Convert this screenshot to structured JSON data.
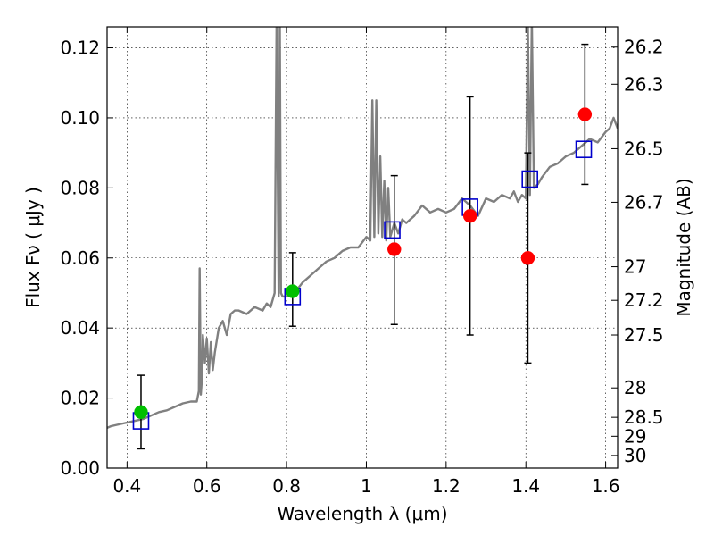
{
  "chart_data": {
    "type": "scatter",
    "xlabel": "Wavelength  λ (μm)",
    "ylabel": "Flux  Fν  ( μJy )",
    "ylabel_right": "Magnitude (AB)",
    "xlim": [
      0.35,
      1.63
    ],
    "ylim": [
      0.0,
      0.126
    ],
    "x_ticks": [
      0.4,
      0.6,
      0.8,
      1.0,
      1.2,
      1.4,
      1.6
    ],
    "x_tick_labels": [
      "0.4",
      "0.6",
      "0.8",
      "1",
      "1.2",
      "1.4",
      "1.6"
    ],
    "y_ticks": [
      0.0,
      0.02,
      0.04,
      0.06,
      0.08,
      0.1,
      0.12
    ],
    "y_tick_labels": [
      "0.00",
      "0.02",
      "0.04",
      "0.06",
      "0.08",
      "0.10",
      "0.12"
    ],
    "right_ticks": [
      {
        "flux": 0.1202,
        "label": "26.2"
      },
      {
        "flux": 0.1096,
        "label": "26.3"
      },
      {
        "flux": 0.0912,
        "label": "26.5"
      },
      {
        "flux": 0.0759,
        "label": "26.7"
      },
      {
        "flux": 0.0575,
        "label": "27"
      },
      {
        "flux": 0.0479,
        "label": "27.2"
      },
      {
        "flux": 0.038,
        "label": "27.5"
      },
      {
        "flux": 0.0229,
        "label": "28"
      },
      {
        "flux": 0.0145,
        "label": "28.5"
      },
      {
        "flux": 0.0091,
        "label": "29"
      },
      {
        "flux": 0.0036,
        "label": "30"
      }
    ],
    "grid": true,
    "series": [
      {
        "kind": "line",
        "color": "#808080",
        "x": [
          0.35,
          0.36,
          0.38,
          0.4,
          0.42,
          0.44,
          0.46,
          0.48,
          0.5,
          0.52,
          0.54,
          0.56,
          0.575,
          0.58,
          0.582,
          0.585,
          0.588,
          0.59,
          0.595,
          0.6,
          0.605,
          0.61,
          0.615,
          0.62,
          0.63,
          0.64,
          0.65,
          0.66,
          0.67,
          0.68,
          0.7,
          0.72,
          0.74,
          0.75,
          0.76,
          0.77,
          0.775,
          0.78,
          0.783,
          0.786,
          0.79,
          0.8,
          0.82,
          0.84,
          0.86,
          0.88,
          0.9,
          0.92,
          0.94,
          0.96,
          0.98,
          1.0,
          1.01,
          1.015,
          1.02,
          1.025,
          1.03,
          1.035,
          1.04,
          1.045,
          1.05,
          1.055,
          1.06,
          1.07,
          1.08,
          1.09,
          1.1,
          1.12,
          1.14,
          1.16,
          1.18,
          1.2,
          1.22,
          1.24,
          1.26,
          1.28,
          1.3,
          1.32,
          1.34,
          1.36,
          1.37,
          1.38,
          1.39,
          1.4,
          1.405,
          1.41,
          1.415,
          1.42,
          1.43,
          1.44,
          1.46,
          1.48,
          1.5,
          1.52,
          1.54,
          1.56,
          1.58,
          1.6,
          1.61,
          1.62,
          1.63
        ],
        "y": [
          0.0115,
          0.012,
          0.0125,
          0.013,
          0.0135,
          0.014,
          0.015,
          0.016,
          0.0165,
          0.0175,
          0.0185,
          0.019,
          0.019,
          0.022,
          0.057,
          0.021,
          0.026,
          0.038,
          0.03,
          0.037,
          0.027,
          0.036,
          0.028,
          0.033,
          0.04,
          0.042,
          0.038,
          0.044,
          0.045,
          0.045,
          0.044,
          0.046,
          0.045,
          0.047,
          0.046,
          0.05,
          0.128,
          0.049,
          0.128,
          0.05,
          0.049,
          0.049,
          0.05,
          0.053,
          0.055,
          0.057,
          0.059,
          0.06,
          0.062,
          0.063,
          0.063,
          0.066,
          0.065,
          0.105,
          0.066,
          0.105,
          0.067,
          0.089,
          0.066,
          0.082,
          0.065,
          0.08,
          0.066,
          0.07,
          0.067,
          0.071,
          0.07,
          0.072,
          0.075,
          0.073,
          0.074,
          0.073,
          0.074,
          0.077,
          0.075,
          0.072,
          0.077,
          0.076,
          0.078,
          0.077,
          0.079,
          0.076,
          0.078,
          0.077,
          0.126,
          0.078,
          0.128,
          0.08,
          0.081,
          0.083,
          0.086,
          0.087,
          0.089,
          0.09,
          0.092,
          0.094,
          0.093,
          0.096,
          0.097,
          0.1,
          0.097
        ]
      },
      {
        "kind": "square",
        "color": "#0000cc",
        "x": [
          0.435,
          0.815,
          1.065,
          1.26,
          1.41,
          1.545
        ],
        "y": [
          0.0135,
          0.049,
          0.068,
          0.0745,
          0.0825,
          0.091
        ]
      },
      {
        "kind": "point",
        "color": "#00c000",
        "x": [
          0.435,
          0.815
        ],
        "y": [
          0.016,
          0.0505
        ],
        "err_low": [
          0.0105,
          0.01
        ],
        "err_high": [
          0.0105,
          0.011
        ]
      },
      {
        "kind": "point",
        "color": "#ff0000",
        "x": [
          1.07,
          1.26,
          1.405,
          1.548
        ],
        "y": [
          0.0625,
          0.072,
          0.06,
          0.101
        ],
        "err_low": [
          0.0215,
          0.034,
          0.03,
          0.02
        ],
        "err_high": [
          0.021,
          0.034,
          0.03,
          0.02
        ]
      }
    ]
  }
}
